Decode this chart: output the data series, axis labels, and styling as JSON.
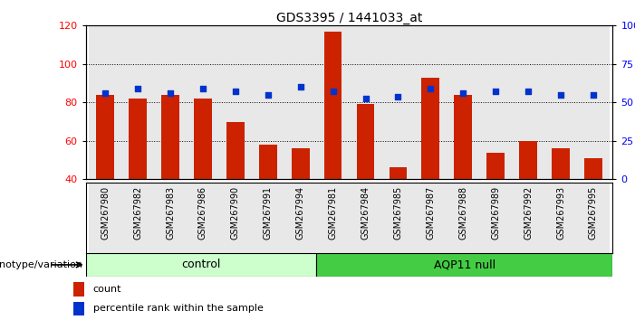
{
  "title": "GDS3395 / 1441033_at",
  "categories": [
    "GSM267980",
    "GSM267982",
    "GSM267983",
    "GSM267986",
    "GSM267990",
    "GSM267991",
    "GSM267994",
    "GSM267981",
    "GSM267984",
    "GSM267985",
    "GSM267987",
    "GSM267988",
    "GSM267989",
    "GSM267992",
    "GSM267993",
    "GSM267995"
  ],
  "bar_values": [
    84,
    82,
    84,
    82,
    70,
    58,
    56,
    117,
    79,
    46,
    93,
    84,
    54,
    60,
    56,
    51
  ],
  "dot_values_left": [
    85,
    87,
    85,
    87,
    86,
    84,
    88,
    86,
    82,
    83,
    87,
    85,
    86,
    86,
    84,
    84
  ],
  "ymin": 40,
  "ymax": 120,
  "yticks_left": [
    40,
    60,
    80,
    100,
    120
  ],
  "yticks_right": [
    0,
    25,
    50,
    75,
    100
  ],
  "bar_color": "#cc2200",
  "dot_color": "#0033cc",
  "plot_bg": "#ffffff",
  "col_bg": "#e8e8e8",
  "control_color": "#ccffcc",
  "aqp11_color": "#44cc44",
  "control_label": "control",
  "aqp11_label": "AQP11 null",
  "group_label": "genotype/variation",
  "legend_count": "count",
  "legend_pct": "percentile rank within the sample",
  "n_control": 7,
  "n_aqp11": 9
}
